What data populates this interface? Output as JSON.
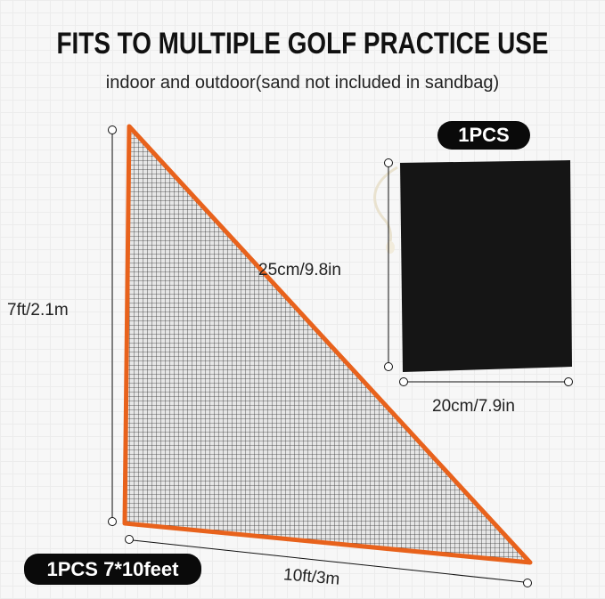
{
  "headline": "FITS TO MULTIPLE GOLF PRACTICE USE",
  "subheadline": "indoor and outdoor(sand not included in sandbag)",
  "net": {
    "badge": "1PCS 7*10feet",
    "height_label": "7ft/2.1m",
    "width_label": "10ft/3m",
    "border_color": "#e8621c"
  },
  "sandbag": {
    "badge": "1PCS",
    "height_label": "25cm/9.8in",
    "width_label": "20cm/7.9in",
    "color": "#151515"
  }
}
